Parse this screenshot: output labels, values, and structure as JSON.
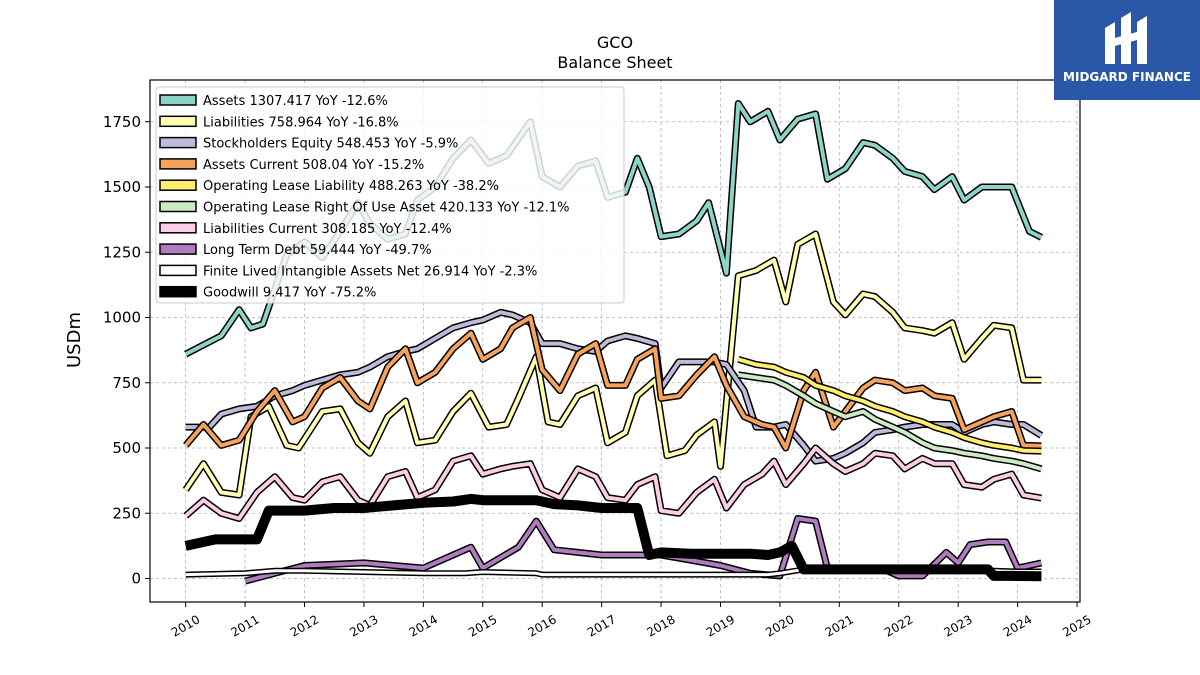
{
  "logo": {
    "text": "MIDGARD FINANCE",
    "bg_color": "#2a57a8"
  },
  "chart_data": {
    "type": "line",
    "title": "GCO",
    "subtitle": "Balance  Sheet",
    "xlabel": "",
    "ylabel": "USDm",
    "xlim": [
      2009.4,
      2025.05
    ],
    "ylim": [
      -90,
      1910
    ],
    "x_ticks": [
      "2010",
      "2011",
      "2012",
      "2013",
      "2014",
      "2015",
      "2016",
      "2017",
      "2018",
      "2019",
      "2020",
      "2021",
      "2022",
      "2023",
      "2024",
      "2025"
    ],
    "y_ticks": [
      0,
      250,
      500,
      750,
      1000,
      1250,
      1500,
      1750
    ],
    "grid": true,
    "legend_position": "top-left",
    "series": [
      {
        "name": "Assets  1307.417 YoY -12.6%",
        "color": "#8dd3c7",
        "width": 4,
        "x": [
          2010.0,
          2010.6,
          2010.9,
          2011.1,
          2011.3,
          2011.7,
          2012.0,
          2012.3,
          2012.6,
          2012.9,
          2013.1,
          2013.4,
          2013.7,
          2013.9,
          2014.2,
          2014.5,
          2014.8,
          2015.1,
          2015.4,
          2015.8,
          2016.0,
          2016.3,
          2016.6,
          2016.9,
          2017.1,
          2017.4,
          2017.6,
          2017.8,
          2018.0,
          2018.3,
          2018.6,
          2018.8,
          2019.1,
          2019.3,
          2019.5,
          2019.8,
          2020.0,
          2020.3,
          2020.6,
          2020.8,
          2021.1,
          2021.4,
          2021.6,
          2021.9,
          2022.1,
          2022.4,
          2022.6,
          2022.9,
          2023.1,
          2023.4,
          2023.7,
          2023.9,
          2024.2,
          2024.4
        ],
        "y": [
          860,
          930,
          1030,
          960,
          975,
          1240,
          1290,
          1230,
          1330,
          1440,
          1360,
          1300,
          1320,
          1450,
          1500,
          1610,
          1680,
          1590,
          1620,
          1750,
          1540,
          1500,
          1580,
          1600,
          1460,
          1480,
          1610,
          1500,
          1310,
          1320,
          1370,
          1440,
          1170,
          1820,
          1750,
          1790,
          1680,
          1760,
          1780,
          1530,
          1570,
          1670,
          1660,
          1610,
          1560,
          1540,
          1490,
          1540,
          1450,
          1500,
          1500,
          1500,
          1330,
          1307
        ]
      },
      {
        "name": "Liabilities  758.964 YoY -16.8%",
        "color": "#ffffb3",
        "width": 4,
        "x": [
          2010.0,
          2010.3,
          2010.6,
          2010.9,
          2011.1,
          2011.4,
          2011.7,
          2011.9,
          2012.3,
          2012.6,
          2012.9,
          2013.1,
          2013.4,
          2013.7,
          2013.9,
          2014.2,
          2014.5,
          2014.8,
          2015.1,
          2015.4,
          2015.6,
          2015.9,
          2016.1,
          2016.3,
          2016.6,
          2016.9,
          2017.1,
          2017.4,
          2017.6,
          2017.9,
          2018.1,
          2018.4,
          2018.6,
          2018.9,
          2019.0,
          2019.3,
          2019.6,
          2019.9,
          2020.1,
          2020.3,
          2020.6,
          2020.9,
          2021.1,
          2021.4,
          2021.6,
          2021.9,
          2022.1,
          2022.4,
          2022.6,
          2022.9,
          2023.1,
          2023.4,
          2023.6,
          2023.9,
          2024.1,
          2024.4
        ],
        "y": [
          340,
          440,
          330,
          320,
          620,
          660,
          510,
          500,
          640,
          650,
          520,
          480,
          620,
          680,
          520,
          530,
          640,
          710,
          580,
          590,
          690,
          850,
          600,
          590,
          700,
          730,
          520,
          560,
          700,
          760,
          470,
          490,
          550,
          600,
          430,
          1160,
          1180,
          1220,
          1060,
          1280,
          1320,
          1060,
          1010,
          1090,
          1080,
          1020,
          960,
          950,
          940,
          980,
          840,
          920,
          970,
          960,
          760,
          760
        ]
      },
      {
        "name": "Stockholders Equity  548.453 YoY -5.9%",
        "color": "#bebada",
        "width": 4,
        "x": [
          2010.0,
          2010.4,
          2010.6,
          2010.9,
          2011.2,
          2011.5,
          2011.8,
          2012.0,
          2012.3,
          2012.6,
          2012.9,
          2013.1,
          2013.4,
          2013.7,
          2013.9,
          2014.2,
          2014.5,
          2014.8,
          2015.0,
          2015.3,
          2015.5,
          2015.8,
          2016.0,
          2016.3,
          2016.6,
          2016.9,
          2017.1,
          2017.4,
          2017.6,
          2017.9,
          2018.0,
          2018.3,
          2018.6,
          2018.9,
          2019.1,
          2019.4,
          2019.6,
          2019.9,
          2020.1,
          2020.4,
          2020.6,
          2020.9,
          2021.1,
          2021.4,
          2021.6,
          2021.9,
          2022.1,
          2022.4,
          2022.6,
          2022.9,
          2023.1,
          2023.4,
          2023.6,
          2023.9,
          2024.1,
          2024.4
        ],
        "y": [
          580,
          580,
          630,
          650,
          660,
          700,
          720,
          740,
          760,
          780,
          790,
          810,
          850,
          870,
          880,
          920,
          960,
          980,
          990,
          1020,
          1010,
          980,
          900,
          900,
          880,
          870,
          910,
          930,
          920,
          900,
          730,
          830,
          830,
          830,
          820,
          720,
          580,
          580,
          590,
          510,
          450,
          460,
          480,
          520,
          560,
          570,
          580,
          590,
          590,
          590,
          560,
          590,
          600,
          590,
          590,
          548
        ]
      },
      {
        "name": "Assets Current  508.04 YoY -15.2%",
        "color": "#fb8072",
        "width": 4,
        "stroke_color": "#f5a25d",
        "x": [
          2010.0,
          2010.3,
          2010.6,
          2010.9,
          2011.2,
          2011.5,
          2011.8,
          2012.0,
          2012.3,
          2012.6,
          2012.9,
          2013.1,
          2013.4,
          2013.7,
          2013.9,
          2014.2,
          2014.5,
          2014.8,
          2015.0,
          2015.3,
          2015.5,
          2015.8,
          2016.0,
          2016.3,
          2016.6,
          2016.9,
          2017.1,
          2017.4,
          2017.6,
          2017.9,
          2018.0,
          2018.3,
          2018.6,
          2018.9,
          2019.1,
          2019.4,
          2019.7,
          2019.9,
          2020.1,
          2020.4,
          2020.6,
          2020.9,
          2021.1,
          2021.4,
          2021.6,
          2021.9,
          2022.1,
          2022.4,
          2022.6,
          2022.9,
          2023.1,
          2023.4,
          2023.6,
          2023.9,
          2024.1,
          2024.4
        ],
        "y": [
          510,
          590,
          510,
          530,
          640,
          720,
          600,
          620,
          730,
          770,
          680,
          650,
          810,
          880,
          750,
          790,
          880,
          940,
          840,
          880,
          960,
          1000,
          800,
          720,
          860,
          900,
          740,
          740,
          840,
          880,
          690,
          700,
          780,
          850,
          740,
          620,
          590,
          580,
          500,
          720,
          790,
          580,
          640,
          730,
          760,
          750,
          720,
          730,
          700,
          690,
          570,
          600,
          620,
          640,
          510,
          508
        ]
      },
      {
        "name": "Operating Lease Liability  488.263 YoY -38.2%",
        "color": "#ffed6f",
        "width": 4,
        "x": [
          2019.3,
          2019.6,
          2019.9,
          2020.1,
          2020.4,
          2020.6,
          2020.9,
          2021.1,
          2021.4,
          2021.6,
          2021.9,
          2022.1,
          2022.4,
          2022.6,
          2022.9,
          2023.1,
          2023.4,
          2023.6,
          2023.9,
          2024.1,
          2024.4
        ],
        "y": [
          840,
          820,
          810,
          790,
          770,
          740,
          720,
          700,
          680,
          660,
          640,
          620,
          600,
          580,
          560,
          540,
          520,
          510,
          500,
          490,
          488
        ]
      },
      {
        "name": "Operating Lease Right Of Use Asset  420.133 YoY -12.1%",
        "color": "#ccebc5",
        "width": 4,
        "x": [
          2019.3,
          2019.6,
          2019.9,
          2020.1,
          2020.4,
          2020.6,
          2020.9,
          2021.1,
          2021.4,
          2021.6,
          2021.9,
          2022.1,
          2022.4,
          2022.6,
          2022.9,
          2023.1,
          2023.4,
          2023.6,
          2023.9,
          2024.1,
          2024.4
        ],
        "y": [
          780,
          770,
          760,
          740,
          700,
          670,
          640,
          620,
          640,
          610,
          580,
          560,
          520,
          500,
          490,
          480,
          470,
          460,
          450,
          440,
          420
        ]
      },
      {
        "name": "Liabilities Current  308.185 YoY -12.4%",
        "color": "#fccde5",
        "width": 4,
        "x": [
          2010.0,
          2010.3,
          2010.6,
          2010.9,
          2011.2,
          2011.5,
          2011.8,
          2012.0,
          2012.3,
          2012.6,
          2012.9,
          2013.1,
          2013.4,
          2013.7,
          2013.9,
          2014.2,
          2014.5,
          2014.8,
          2015.0,
          2015.3,
          2015.5,
          2015.8,
          2016.0,
          2016.3,
          2016.6,
          2016.9,
          2017.1,
          2017.4,
          2017.6,
          2017.9,
          2018.0,
          2018.3,
          2018.6,
          2018.9,
          2019.1,
          2019.4,
          2019.7,
          2019.9,
          2020.1,
          2020.4,
          2020.6,
          2020.9,
          2021.1,
          2021.4,
          2021.6,
          2021.9,
          2022.1,
          2022.4,
          2022.6,
          2022.9,
          2023.1,
          2023.4,
          2023.6,
          2023.9,
          2024.1,
          2024.4
        ],
        "y": [
          240,
          300,
          250,
          230,
          330,
          390,
          310,
          300,
          370,
          390,
          300,
          280,
          390,
          410,
          310,
          340,
          450,
          470,
          400,
          420,
          430,
          440,
          340,
          310,
          420,
          390,
          310,
          300,
          360,
          390,
          260,
          250,
          330,
          380,
          270,
          360,
          400,
          450,
          360,
          440,
          500,
          440,
          410,
          440,
          480,
          470,
          420,
          460,
          440,
          440,
          360,
          350,
          380,
          400,
          320,
          308
        ]
      },
      {
        "name": "Long Term Debt  59.444 YoY -49.7%",
        "color": "#b07cc0",
        "width": 4,
        "x": [
          2011.0,
          2011.5,
          2012.0,
          2012.5,
          2013.0,
          2013.5,
          2014.0,
          2014.5,
          2014.8,
          2015.0,
          2015.3,
          2015.6,
          2015.9,
          2016.2,
          2016.6,
          2017.0,
          2017.5,
          2018.0,
          2018.5,
          2019.0,
          2019.5,
          2020.0,
          2020.3,
          2020.6,
          2020.8,
          2021.1,
          2021.4,
          2021.7,
          2022.0,
          2022.4,
          2022.8,
          2023.0,
          2023.2,
          2023.5,
          2023.8,
          2024.0,
          2024.2,
          2024.4
        ],
        "y": [
          -10,
          20,
          50,
          55,
          60,
          50,
          40,
          90,
          120,
          40,
          80,
          120,
          220,
          110,
          100,
          90,
          90,
          90,
          70,
          50,
          20,
          10,
          230,
          220,
          40,
          40,
          40,
          40,
          10,
          10,
          100,
          60,
          130,
          140,
          140,
          40,
          50,
          60
        ]
      },
      {
        "name": "Finite Lived Intangible Assets Net  26.914 YoY -2.3%",
        "color": "#ffffff",
        "width": 3,
        "x": [
          2010.0,
          2011.0,
          2011.5,
          2012.0,
          2013.0,
          2014.0,
          2014.7,
          2015.0,
          2015.9,
          2016.0,
          2017.0,
          2018.0,
          2019.0,
          2019.8,
          2020.0,
          2020.4,
          2021.0,
          2022.0,
          2023.0,
          2023.6,
          2024.0,
          2024.4
        ],
        "y": [
          15,
          20,
          30,
          30,
          25,
          20,
          20,
          25,
          20,
          15,
          15,
          15,
          15,
          15,
          20,
          35,
          35,
          30,
          30,
          30,
          27,
          27
        ]
      },
      {
        "name": "Goodwill  9.417 YoY -75.2%",
        "color": "#000000",
        "width": 7,
        "x": [
          2010.0,
          2010.5,
          2010.8,
          2011.2,
          2011.4,
          2011.6,
          2012.0,
          2012.5,
          2013.0,
          2013.5,
          2014.0,
          2014.5,
          2014.8,
          2015.0,
          2015.5,
          2015.9,
          2016.2,
          2016.6,
          2017.0,
          2017.4,
          2017.6,
          2017.8,
          2018.0,
          2018.5,
          2019.0,
          2019.5,
          2019.8,
          2020.0,
          2020.2,
          2020.4,
          2020.8,
          2021.0,
          2021.5,
          2022.0,
          2022.5,
          2023.0,
          2023.5,
          2023.6,
          2023.9,
          2024.4
        ],
        "y": [
          125,
          150,
          150,
          150,
          260,
          260,
          260,
          270,
          270,
          280,
          290,
          295,
          305,
          300,
          300,
          300,
          285,
          280,
          270,
          270,
          270,
          90,
          100,
          95,
          95,
          95,
          90,
          100,
          125,
          35,
          35,
          35,
          35,
          35,
          35,
          35,
          35,
          10,
          10,
          9
        ]
      }
    ]
  }
}
